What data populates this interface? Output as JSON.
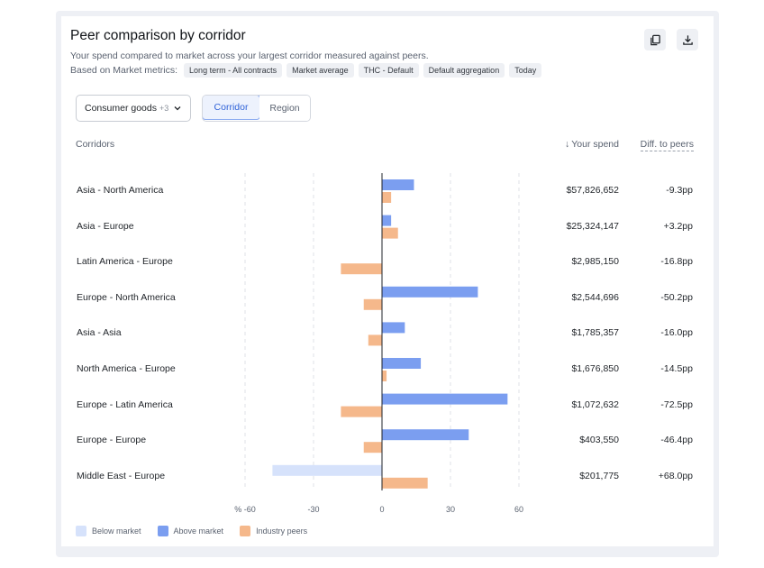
{
  "card": {
    "title": "Peer comparison by corridor",
    "subtitle": "Your spend compared to market across your largest corridor measured against peers.",
    "metrics_label": "Based on Market metrics:",
    "chips": [
      "Long term - All contracts",
      "Market average",
      "THC - Default",
      "Default aggregation",
      "Today"
    ]
  },
  "toolbar": {
    "copy_icon": "copy-icon",
    "download_icon": "download-icon"
  },
  "filters": {
    "dropdown_label": "Consumer goods",
    "dropdown_count": "+3",
    "segments": [
      "Corridor",
      "Region"
    ],
    "active_segment": "Corridor"
  },
  "table": {
    "col_corridors": "Corridors",
    "col_spend": "Your spend",
    "col_diff": "Diff. to peers",
    "rows": [
      {
        "corridor": "Asia - North America",
        "spend": "$57,826,652",
        "diff": "-9.3pp"
      },
      {
        "corridor": "Asia - Europe",
        "spend": "$25,324,147",
        "diff": "+3.2pp"
      },
      {
        "corridor": "Latin America - Europe",
        "spend": "$2,985,150",
        "diff": "-16.8pp"
      },
      {
        "corridor": "Europe - North America",
        "spend": "$2,544,696",
        "diff": "-50.2pp"
      },
      {
        "corridor": "Asia - Asia",
        "spend": "$1,785,357",
        "diff": "-16.0pp"
      },
      {
        "corridor": "North America - Europe",
        "spend": "$1,676,850",
        "diff": "-14.5pp"
      },
      {
        "corridor": "Europe - Latin America",
        "spend": "$1,072,632",
        "diff": "-72.5pp"
      },
      {
        "corridor": "Europe - Europe",
        "spend": "$403,550",
        "diff": "-46.4pp"
      },
      {
        "corridor": "Middle East - Europe",
        "spend": "$201,775",
        "diff": "+68.0pp"
      }
    ]
  },
  "chart_data": {
    "type": "bar",
    "orientation": "horizontal",
    "categories": [
      "Asia - North America",
      "Asia - Europe",
      "Latin America - Europe",
      "Europe - North America",
      "Asia - Asia",
      "North America - Europe",
      "Europe - Latin America",
      "Europe - Europe",
      "Middle East - Europe"
    ],
    "series": [
      {
        "name": "Below market",
        "color": "#d6e2fb",
        "values": [
          null,
          null,
          null,
          null,
          null,
          null,
          null,
          null,
          -48
        ]
      },
      {
        "name": "Above market",
        "color": "#7b9ef0",
        "values": [
          14,
          4,
          0,
          42,
          10,
          17,
          55,
          38,
          null
        ]
      },
      {
        "name": "Industry peers",
        "color": "#f5b88b",
        "values": [
          4,
          7,
          -18,
          -8,
          -6,
          2,
          -18,
          -8,
          20
        ]
      }
    ],
    "xlim": [
      -60,
      60
    ],
    "xticks": [
      -60,
      -30,
      0,
      30,
      60
    ],
    "xtick_labels": [
      "% -60",
      "-30",
      "0",
      "30",
      "60"
    ],
    "grid": "dashed vertical",
    "legend_placement": "bottom-left"
  }
}
